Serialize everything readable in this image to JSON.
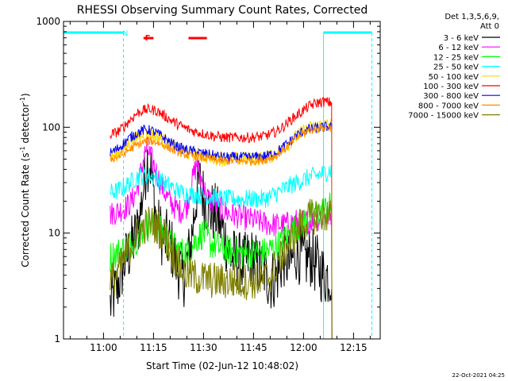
{
  "chart_data": {
    "type": "line",
    "title": "RHESSI Observing Summary Count Rates, Corrected",
    "xlabel": "Start Time (02-Jun-12 10:48:02)",
    "ylabel_main": "Corrected Count Rate (s",
    "ylabel_sup1": "-1",
    "ylabel_mid": " detector",
    "ylabel_sup2": "-1",
    "ylabel_end": ")",
    "yscale": "log",
    "ylim": [
      1,
      1000
    ],
    "xlim_minutes": [
      0,
      95
    ],
    "x_ticks": [
      {
        "m": 12,
        "label": "11:00"
      },
      {
        "m": 27,
        "label": "11:15"
      },
      {
        "m": 42,
        "label": "11:30"
      },
      {
        "m": 57,
        "label": "11:45"
      },
      {
        "m": 72,
        "label": "12:00"
      },
      {
        "m": 87,
        "label": "12:15"
      }
    ],
    "y_ticks": [
      {
        "v": 1,
        "label": "1"
      },
      {
        "v": 10,
        "label": "10"
      },
      {
        "v": 100,
        "label": "100"
      },
      {
        "v": 1000,
        "label": "1000"
      }
    ],
    "legend_header": [
      "Det 1,3,5,6,9,",
      "Att 0"
    ],
    "legend_placement": "right",
    "timestamp": "22-Oct-2021 04:25",
    "night_flag": "N",
    "flare_flag": "F",
    "flare_intervals": [
      [
        24,
        27
      ],
      [
        37.5,
        43
      ]
    ],
    "flare_color": "#ff0000",
    "eclipse_marks": {
      "color": "#00ffff",
      "top_bars": [
        [
          0,
          18
        ],
        [
          78,
          92.5
        ]
      ],
      "solid_lines": [
        0,
        78
      ],
      "dashed_lines": [
        18,
        92.5
      ],
      "data_start": 14,
      "data_end": 80.5
    },
    "series": [
      {
        "name": "3 - 6 keV",
        "color": "#000000",
        "points": [
          [
            14,
            2.1
          ],
          [
            16,
            3
          ],
          [
            18,
            5
          ],
          [
            20,
            7
          ],
          [
            22,
            10
          ],
          [
            23,
            15
          ],
          [
            25,
            50
          ],
          [
            26,
            45
          ],
          [
            28,
            12
          ],
          [
            30,
            9
          ],
          [
            32,
            8
          ],
          [
            34,
            5
          ],
          [
            36,
            3.8
          ],
          [
            38,
            7
          ],
          [
            40,
            25
          ],
          [
            41,
            30
          ],
          [
            42,
            22
          ],
          [
            44,
            16
          ],
          [
            46,
            15
          ],
          [
            48,
            10
          ],
          [
            50,
            6
          ],
          [
            52,
            5.5
          ],
          [
            54,
            5
          ],
          [
            56,
            6
          ],
          [
            58,
            5
          ],
          [
            60,
            4.5
          ],
          [
            62,
            3.5
          ],
          [
            64,
            4
          ],
          [
            66,
            6
          ],
          [
            68,
            5
          ],
          [
            70,
            7
          ],
          [
            72,
            5.5
          ],
          [
            74,
            6
          ],
          [
            76,
            5
          ],
          [
            78,
            4
          ],
          [
            80.5,
            4
          ]
        ],
        "noise": 0.3
      },
      {
        "name": "6 - 12 keV",
        "color": "#ff00ff",
        "points": [
          [
            14,
            15
          ],
          [
            16,
            16
          ],
          [
            18,
            17
          ],
          [
            20,
            19
          ],
          [
            22,
            25
          ],
          [
            24,
            50
          ],
          [
            25,
            65
          ],
          [
            27,
            45
          ],
          [
            29,
            30
          ],
          [
            31,
            22
          ],
          [
            33,
            18
          ],
          [
            35,
            16
          ],
          [
            37,
            18
          ],
          [
            39,
            35
          ],
          [
            40,
            45
          ],
          [
            41,
            35
          ],
          [
            43,
            22
          ],
          [
            46,
            18
          ],
          [
            50,
            15
          ],
          [
            54,
            14
          ],
          [
            58,
            13
          ],
          [
            62,
            12
          ],
          [
            66,
            12
          ],
          [
            70,
            13
          ],
          [
            74,
            13
          ],
          [
            78,
            14
          ],
          [
            80.5,
            15
          ]
        ],
        "noise": 0.12
      },
      {
        "name": "12 - 25 keV",
        "color": "#00ff00",
        "points": [
          [
            14,
            6
          ],
          [
            16,
            6.5
          ],
          [
            18,
            7
          ],
          [
            20,
            8
          ],
          [
            22,
            9
          ],
          [
            24,
            11
          ],
          [
            26,
            12
          ],
          [
            28,
            11
          ],
          [
            30,
            10
          ],
          [
            32,
            8
          ],
          [
            34,
            7
          ],
          [
            36,
            6.5
          ],
          [
            38,
            7
          ],
          [
            40,
            9
          ],
          [
            42,
            10
          ],
          [
            44,
            8
          ],
          [
            48,
            7
          ],
          [
            52,
            6.5
          ],
          [
            56,
            6.5
          ],
          [
            60,
            6.5
          ],
          [
            64,
            7.5
          ],
          [
            68,
            10
          ],
          [
            72,
            13
          ],
          [
            76,
            15
          ],
          [
            80.5,
            18
          ]
        ],
        "noise": 0.15
      },
      {
        "name": "25 - 50 keV",
        "color": "#00ffff",
        "points": [
          [
            14,
            24
          ],
          [
            16,
            25
          ],
          [
            18,
            27
          ],
          [
            20,
            30
          ],
          [
            22,
            34
          ],
          [
            24,
            35
          ],
          [
            26,
            35
          ],
          [
            28,
            33
          ],
          [
            30,
            30
          ],
          [
            32,
            28
          ],
          [
            34,
            25
          ],
          [
            36,
            24
          ],
          [
            40,
            23
          ],
          [
            44,
            22
          ],
          [
            48,
            21
          ],
          [
            52,
            21
          ],
          [
            56,
            21
          ],
          [
            60,
            21
          ],
          [
            62,
            22
          ],
          [
            64,
            24
          ],
          [
            66,
            26
          ],
          [
            68,
            28
          ],
          [
            70,
            30
          ],
          [
            72,
            32
          ],
          [
            74,
            34
          ],
          [
            76,
            35
          ],
          [
            78,
            37
          ],
          [
            80.5,
            40
          ]
        ],
        "noise": 0.09
      },
      {
        "name": "50 - 100 keV",
        "color": "#ffd700",
        "points": [
          [
            14,
            52
          ],
          [
            16,
            55
          ],
          [
            18,
            62
          ],
          [
            20,
            72
          ],
          [
            22,
            80
          ],
          [
            24,
            85
          ],
          [
            26,
            86
          ],
          [
            28,
            82
          ],
          [
            30,
            75
          ],
          [
            32,
            68
          ],
          [
            34,
            62
          ],
          [
            36,
            58
          ],
          [
            38,
            56
          ],
          [
            40,
            55
          ],
          [
            44,
            52
          ],
          [
            48,
            50
          ],
          [
            52,
            50
          ],
          [
            56,
            50
          ],
          [
            60,
            51
          ],
          [
            62,
            53
          ],
          [
            64,
            57
          ],
          [
            66,
            63
          ],
          [
            68,
            72
          ],
          [
            70,
            82
          ],
          [
            72,
            92
          ],
          [
            74,
            98
          ],
          [
            76,
            102
          ],
          [
            78,
            105
          ],
          [
            80.5,
            106
          ]
        ],
        "noise": 0.07
      },
      {
        "name": "100 - 300 keV",
        "color": "#ff0000",
        "points": [
          [
            14,
            85
          ],
          [
            16,
            90
          ],
          [
            18,
            100
          ],
          [
            20,
            118
          ],
          [
            22,
            135
          ],
          [
            24,
            145
          ],
          [
            26,
            148
          ],
          [
            28,
            143
          ],
          [
            30,
            130
          ],
          [
            32,
            118
          ],
          [
            34,
            108
          ],
          [
            36,
            100
          ],
          [
            38,
            94
          ],
          [
            40,
            90
          ],
          [
            44,
            84
          ],
          [
            48,
            80
          ],
          [
            52,
            80
          ],
          [
            56,
            80
          ],
          [
            60,
            82
          ],
          [
            62,
            86
          ],
          [
            64,
            92
          ],
          [
            66,
            102
          ],
          [
            68,
            116
          ],
          [
            70,
            130
          ],
          [
            72,
            145
          ],
          [
            74,
            160
          ],
          [
            76,
            170
          ],
          [
            78,
            175
          ],
          [
            80.5,
            170
          ]
        ],
        "noise": 0.05
      },
      {
        "name": "300 - 800 keV",
        "color": "#0000ff",
        "points": [
          [
            14,
            57
          ],
          [
            16,
            62
          ],
          [
            18,
            70
          ],
          [
            20,
            80
          ],
          [
            22,
            88
          ],
          [
            24,
            94
          ],
          [
            26,
            94
          ],
          [
            28,
            88
          ],
          [
            30,
            80
          ],
          [
            32,
            72
          ],
          [
            34,
            66
          ],
          [
            36,
            62
          ],
          [
            38,
            60
          ],
          [
            40,
            58
          ],
          [
            44,
            55
          ],
          [
            48,
            52
          ],
          [
            52,
            52
          ],
          [
            56,
            52
          ],
          [
            60,
            53
          ],
          [
            62,
            55
          ],
          [
            64,
            59
          ],
          [
            66,
            65
          ],
          [
            68,
            74
          ],
          [
            70,
            84
          ],
          [
            72,
            92
          ],
          [
            74,
            96
          ],
          [
            76,
            98
          ],
          [
            78,
            100
          ],
          [
            80.5,
            102
          ]
        ],
        "noise": 0.05
      },
      {
        "name": "800 - 7000 keV",
        "color": "#ff8c00",
        "points": [
          [
            14,
            50
          ],
          [
            16,
            52
          ],
          [
            18,
            56
          ],
          [
            20,
            62
          ],
          [
            22,
            68
          ],
          [
            24,
            72
          ],
          [
            26,
            74
          ],
          [
            28,
            72
          ],
          [
            30,
            68
          ],
          [
            32,
            63
          ],
          [
            34,
            59
          ],
          [
            36,
            56
          ],
          [
            38,
            54
          ],
          [
            40,
            53
          ],
          [
            44,
            50
          ],
          [
            48,
            48
          ],
          [
            52,
            48
          ],
          [
            56,
            48
          ],
          [
            60,
            49
          ],
          [
            62,
            51
          ],
          [
            64,
            55
          ],
          [
            66,
            61
          ],
          [
            68,
            70
          ],
          [
            70,
            80
          ],
          [
            72,
            88
          ],
          [
            74,
            94
          ],
          [
            76,
            97
          ],
          [
            78,
            98
          ],
          [
            80.5,
            100
          ]
        ],
        "noise": 0.04
      },
      {
        "name": "7000 - 15000 keV",
        "color": "#808000",
        "points": [
          [
            14,
            3.5
          ],
          [
            16,
            4
          ],
          [
            18,
            5.5
          ],
          [
            20,
            7.5
          ],
          [
            22,
            9.5
          ],
          [
            24,
            11.5
          ],
          [
            26,
            12.5
          ],
          [
            28,
            11.5
          ],
          [
            30,
            10
          ],
          [
            32,
            7
          ],
          [
            34,
            5.5
          ],
          [
            36,
            4.2
          ],
          [
            38,
            4
          ],
          [
            40,
            3.8
          ],
          [
            44,
            3.6
          ],
          [
            48,
            3.5
          ],
          [
            52,
            3.5
          ],
          [
            56,
            3.5
          ],
          [
            60,
            3.6
          ],
          [
            62,
            4
          ],
          [
            64,
            5
          ],
          [
            66,
            6.5
          ],
          [
            68,
            8.5
          ],
          [
            70,
            10.5
          ],
          [
            72,
            12.5
          ],
          [
            74,
            14
          ],
          [
            76,
            15
          ],
          [
            78,
            15
          ],
          [
            80.5,
            15
          ]
        ],
        "noise": 0.18
      }
    ]
  }
}
